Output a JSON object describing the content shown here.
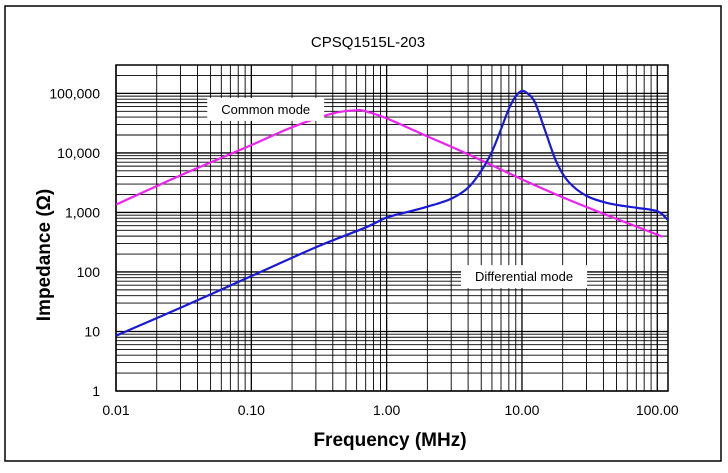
{
  "chart_data": {
    "type": "line",
    "title": "CPSQ1515L-203",
    "xlabel": "Frequency (MHz)",
    "ylabel": "Impedance (Ω)",
    "xscale": "log",
    "yscale": "log",
    "xlim": [
      0.01,
      120
    ],
    "ylim": [
      1,
      300000
    ],
    "grid": true,
    "x_ticks": [
      {
        "value": 0.01,
        "label": "0.01"
      },
      {
        "value": 0.1,
        "label": "0.10"
      },
      {
        "value": 1,
        "label": "1.00"
      },
      {
        "value": 10,
        "label": "10.00"
      },
      {
        "value": 100,
        "label": "100.00"
      }
    ],
    "y_ticks": [
      {
        "value": 1,
        "label": "1"
      },
      {
        "value": 10,
        "label": "10"
      },
      {
        "value": 100,
        "label": "100"
      },
      {
        "value": 1000,
        "label": "1,000"
      },
      {
        "value": 10000,
        "label": "10,000"
      },
      {
        "value": 100000,
        "label": "100,000"
      }
    ],
    "annotations": [
      {
        "text": "Common mode",
        "x": 0.06,
        "y": 55000
      },
      {
        "text": "Differential mode",
        "x": 4.5,
        "y": 85
      }
    ],
    "series": [
      {
        "name": "Common mode",
        "color": "#ee22ee",
        "points": [
          [
            0.01,
            1350
          ],
          [
            0.03,
            4200
          ],
          [
            0.1,
            13500
          ],
          [
            0.2,
            27000
          ],
          [
            0.4,
            46000
          ],
          [
            0.6,
            52000
          ],
          [
            0.7,
            50000
          ],
          [
            1.0,
            38000
          ],
          [
            2.0,
            19000
          ],
          [
            4.0,
            9500
          ],
          [
            10.0,
            3600
          ],
          [
            20.0,
            1800
          ],
          [
            40.0,
            950
          ],
          [
            70.0,
            580
          ],
          [
            110.0,
            390
          ]
        ]
      },
      {
        "name": "Differential mode",
        "color": "#1a1ad6",
        "points": [
          [
            0.01,
            8.5
          ],
          [
            0.03,
            25
          ],
          [
            0.1,
            85
          ],
          [
            0.3,
            260
          ],
          [
            0.7,
            560
          ],
          [
            1.0,
            820
          ],
          [
            1.5,
            1050
          ],
          [
            2.0,
            1250
          ],
          [
            3.0,
            1700
          ],
          [
            4.0,
            2600
          ],
          [
            5.0,
            5000
          ],
          [
            6.0,
            10500
          ],
          [
            7.0,
            25000
          ],
          [
            8.0,
            55000
          ],
          [
            9.0,
            90000
          ],
          [
            10.0,
            110000
          ],
          [
            11.0,
            100000
          ],
          [
            12.5,
            70000
          ],
          [
            15.0,
            22000
          ],
          [
            18.0,
            7000
          ],
          [
            22.0,
            3300
          ],
          [
            30.0,
            1900
          ],
          [
            45.0,
            1400
          ],
          [
            70.0,
            1200
          ],
          [
            100.0,
            1050
          ],
          [
            120.0,
            750
          ]
        ]
      }
    ]
  }
}
